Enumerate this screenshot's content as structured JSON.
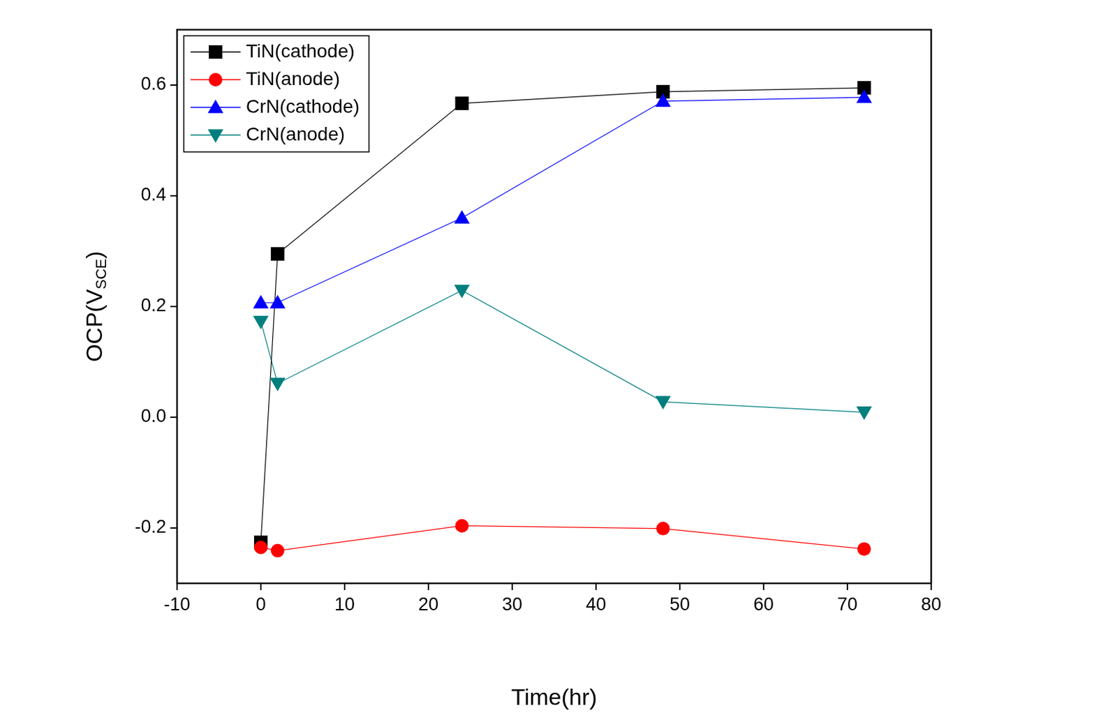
{
  "chart_data": {
    "type": "line",
    "x_label": "Time(hr)",
    "y_label": "OCP(VSCE)",
    "y_label_subscript": "SCE",
    "x": [
      0,
      2,
      24,
      48,
      72
    ],
    "series": [
      {
        "name": "TiN(cathode)",
        "color": "#000000",
        "marker": "square",
        "values": [
          -0.226,
          0.295,
          0.567,
          0.588,
          0.595
        ]
      },
      {
        "name": "TiN(anode)",
        "color": "#ff0000",
        "marker": "circle",
        "values": [
          -0.235,
          -0.241,
          -0.196,
          -0.201,
          -0.238
        ]
      },
      {
        "name": "CrN(cathode)",
        "color": "#0000ff",
        "marker": "triangle",
        "values": [
          0.207,
          0.207,
          0.36,
          0.571,
          0.578
        ]
      },
      {
        "name": "CrN(anode)",
        "color": "#007f7f",
        "marker": "triangle_down",
        "values": [
          0.173,
          0.061,
          0.229,
          0.028,
          0.009
        ]
      }
    ],
    "xlim": [
      -10,
      80
    ],
    "xticks": [
      -10,
      0,
      10,
      20,
      30,
      40,
      50,
      60,
      70,
      80
    ],
    "ylim": [
      -0.3,
      0.7
    ],
    "yticks": [
      -0.2,
      {
        "value": 0,
        "label": "0.0"
      },
      0.2,
      0.4,
      0.6
    ],
    "grid": false,
    "legend": "top-left"
  }
}
